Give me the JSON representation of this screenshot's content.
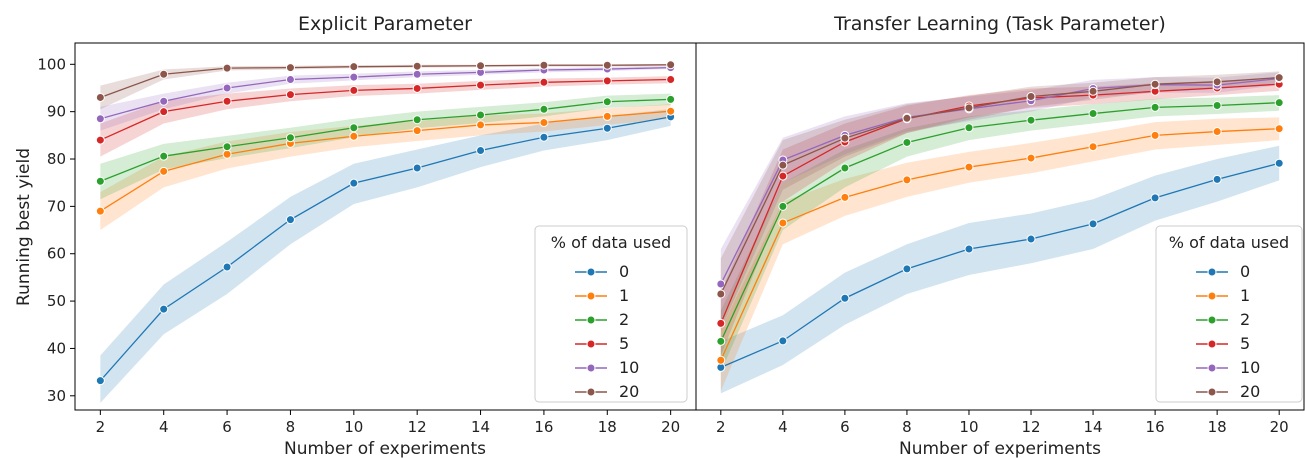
{
  "figure": {
    "ylabel": "Running best yield",
    "series_colors": [
      "#1f77b4",
      "#ff7f0e",
      "#2ca02c",
      "#d62728",
      "#9467bd",
      "#8c564b"
    ]
  },
  "chart_data": [
    {
      "type": "line",
      "title": "Explicit Parameter",
      "xlabel": "Number of experiments",
      "ylabel": "Running best yield",
      "x": [
        2,
        4,
        6,
        8,
        10,
        12,
        14,
        16,
        18,
        20
      ],
      "xlim": [
        1.2,
        20.8
      ],
      "ylim": [
        27,
        104.5
      ],
      "yticks": [
        30,
        40,
        50,
        60,
        70,
        80,
        90,
        100
      ],
      "legend_title": "% of data used",
      "legend_position": "lower-right",
      "grid": false,
      "series": [
        {
          "name": "0",
          "values": [
            33.2,
            48.3,
            57.2,
            67.2,
            74.9,
            78.1,
            81.8,
            84.6,
            86.5,
            88.9
          ],
          "lower": [
            28.5,
            43.0,
            51.5,
            62.0,
            70.5,
            74.0,
            78.3,
            81.8,
            84.0,
            87.0
          ],
          "upper": [
            38.5,
            53.5,
            62.5,
            72.0,
            79.0,
            82.0,
            85.0,
            87.5,
            89.0,
            90.6
          ]
        },
        {
          "name": "1",
          "values": [
            69.0,
            77.4,
            81.0,
            83.3,
            84.8,
            86.0,
            87.2,
            87.7,
            89.0,
            90.1
          ],
          "lower": [
            65.0,
            74.0,
            78.0,
            80.5,
            82.5,
            83.8,
            85.0,
            85.8,
            87.2,
            88.5
          ],
          "upper": [
            73.0,
            80.5,
            83.7,
            85.7,
            87.0,
            88.0,
            89.2,
            89.6,
            90.7,
            91.6
          ]
        },
        {
          "name": "2",
          "values": [
            75.3,
            80.6,
            82.6,
            84.5,
            86.6,
            88.3,
            89.3,
            90.5,
            92.1,
            92.6
          ],
          "lower": [
            71.5,
            77.8,
            80.2,
            82.3,
            84.6,
            86.5,
            87.6,
            89.0,
            90.8,
            91.4
          ],
          "upper": [
            79.0,
            83.2,
            84.9,
            86.6,
            88.5,
            90.0,
            91.0,
            92.0,
            93.4,
            93.8
          ]
        },
        {
          "name": "5",
          "values": [
            84.0,
            90.0,
            92.2,
            93.6,
            94.5,
            94.9,
            95.6,
            96.2,
            96.5,
            96.8
          ],
          "lower": [
            80.5,
            87.5,
            90.5,
            92.2,
            93.3,
            93.8,
            94.6,
            95.3,
            95.7,
            96.0
          ],
          "upper": [
            87.5,
            92.3,
            93.8,
            94.9,
            95.6,
            95.9,
            96.5,
            97.0,
            97.2,
            97.5
          ]
        },
        {
          "name": "10",
          "values": [
            88.5,
            92.2,
            95.0,
            96.8,
            97.3,
            97.9,
            98.3,
            98.8,
            99.0,
            99.3
          ],
          "lower": [
            86.0,
            90.5,
            93.8,
            95.9,
            96.6,
            97.3,
            97.8,
            98.3,
            98.6,
            99.0
          ],
          "upper": [
            91.0,
            93.8,
            96.1,
            97.6,
            98.0,
            98.5,
            98.8,
            99.2,
            99.4,
            99.6
          ]
        },
        {
          "name": "20",
          "values": [
            93.0,
            97.9,
            99.2,
            99.3,
            99.5,
            99.6,
            99.7,
            99.8,
            99.8,
            99.9
          ],
          "lower": [
            90.5,
            96.8,
            98.7,
            98.9,
            99.2,
            99.3,
            99.4,
            99.5,
            99.5,
            99.6
          ],
          "upper": [
            95.5,
            98.9,
            99.6,
            99.7,
            99.8,
            99.9,
            99.9,
            100.0,
            100.0,
            100.0
          ]
        }
      ]
    },
    {
      "type": "line",
      "title": "Transfer Learning (Task Parameter)",
      "xlabel": "Number of experiments",
      "ylabel": "",
      "x": [
        2,
        4,
        6,
        8,
        10,
        12,
        14,
        16,
        18,
        20
      ],
      "xlim": [
        1.2,
        20.8
      ],
      "ylim": [
        27,
        104.5
      ],
      "yticks": [],
      "legend_title": "% of data used",
      "legend_position": "lower-right",
      "grid": false,
      "series": [
        {
          "name": "0",
          "values": [
            36.0,
            41.6,
            50.6,
            56.8,
            61.0,
            63.1,
            66.3,
            71.8,
            75.7,
            79.1
          ],
          "lower": [
            30.5,
            36.5,
            45.0,
            51.5,
            55.5,
            58.0,
            61.0,
            67.0,
            71.0,
            75.5
          ],
          "upper": [
            41.5,
            47.0,
            56.0,
            62.0,
            66.5,
            68.5,
            71.5,
            76.5,
            80.0,
            82.8
          ]
        },
        {
          "name": "1",
          "values": [
            37.5,
            66.5,
            71.9,
            75.6,
            78.3,
            80.2,
            82.6,
            85.0,
            85.8,
            86.4
          ],
          "lower": [
            31.0,
            62.0,
            68.0,
            72.0,
            75.0,
            77.0,
            79.5,
            82.0,
            83.0,
            84.0
          ],
          "upper": [
            44.0,
            71.0,
            75.8,
            79.2,
            81.5,
            83.4,
            85.5,
            87.8,
            88.5,
            88.8
          ]
        },
        {
          "name": "2",
          "values": [
            41.5,
            70.0,
            78.1,
            83.5,
            86.6,
            88.2,
            89.6,
            90.9,
            91.3,
            91.9
          ],
          "lower": [
            35.0,
            65.0,
            74.0,
            80.5,
            84.0,
            86.0,
            87.5,
            89.0,
            89.5,
            90.2
          ],
          "upper": [
            48.0,
            75.0,
            82.0,
            86.5,
            89.0,
            90.3,
            91.6,
            92.7,
            93.0,
            93.5
          ]
        },
        {
          "name": "5",
          "values": [
            45.3,
            76.4,
            83.6,
            88.5,
            91.2,
            92.9,
            93.5,
            94.3,
            95.0,
            95.8
          ],
          "lower": [
            38.5,
            71.0,
            79.5,
            85.5,
            88.8,
            90.8,
            91.6,
            92.6,
            93.5,
            94.4
          ],
          "upper": [
            52.0,
            82.0,
            87.5,
            91.3,
            93.5,
            94.9,
            95.3,
            96.0,
            96.5,
            97.1
          ]
        },
        {
          "name": "10",
          "values": [
            53.6,
            79.8,
            85.0,
            88.8,
            90.6,
            92.3,
            94.9,
            95.7,
            95.6,
            97.0
          ],
          "lower": [
            46.0,
            75.0,
            81.0,
            85.8,
            88.0,
            90.0,
            93.0,
            94.0,
            94.0,
            95.6
          ],
          "upper": [
            61.0,
            84.5,
            89.0,
            91.8,
            93.2,
            94.5,
            96.7,
            97.3,
            97.2,
            98.3
          ]
        },
        {
          "name": "20",
          "values": [
            51.5,
            78.7,
            84.4,
            88.6,
            90.8,
            93.2,
            94.3,
            95.8,
            96.3,
            97.2
          ],
          "lower": [
            44.0,
            73.5,
            80.5,
            85.5,
            88.3,
            91.0,
            92.5,
            94.2,
            94.8,
            95.9
          ],
          "upper": [
            59.0,
            84.0,
            88.3,
            91.6,
            93.3,
            95.3,
            96.1,
            97.3,
            97.8,
            98.5
          ]
        }
      ]
    }
  ]
}
